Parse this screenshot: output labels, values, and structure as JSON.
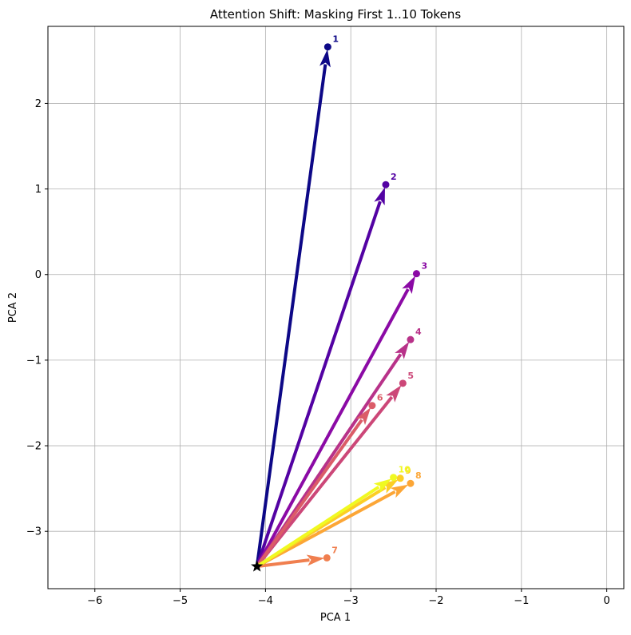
{
  "chart_data": {
    "type": "scatter",
    "title": "Attention Shift: Masking First 1..10 Tokens",
    "xlabel": "PCA 1",
    "ylabel": "PCA 2",
    "xlim": [
      -6.55,
      0.2
    ],
    "ylim": [
      -3.67,
      2.9
    ],
    "xticks": [
      -6,
      -5,
      -4,
      -3,
      -2,
      -1,
      0
    ],
    "yticks": [
      -3,
      -2,
      -1,
      0,
      1,
      2
    ],
    "xtick_labels": [
      "−6",
      "−5",
      "−4",
      "−3",
      "−2",
      "−1",
      "0"
    ],
    "ytick_labels": [
      "−3",
      "−2",
      "−1",
      "0",
      "1",
      "2"
    ],
    "grid": true,
    "origin": {
      "x": -4.1,
      "y": -3.41,
      "marker": "star",
      "color": "#000000"
    },
    "points": [
      {
        "label": "1",
        "x": -3.27,
        "y": 2.66,
        "color": "#0d0887"
      },
      {
        "label": "2",
        "x": -2.59,
        "y": 1.05,
        "color": "#5302a3"
      },
      {
        "label": "3",
        "x": -2.23,
        "y": 0.01,
        "color": "#8b0aa5"
      },
      {
        "label": "4",
        "x": -2.3,
        "y": -0.76,
        "color": "#b83289"
      },
      {
        "label": "5",
        "x": -2.39,
        "y": -1.27,
        "color": "#cc4778"
      },
      {
        "label": "6",
        "x": -2.75,
        "y": -1.53,
        "color": "#db5c68"
      },
      {
        "label": "7",
        "x": -3.28,
        "y": -3.31,
        "color": "#f07f4f"
      },
      {
        "label": "8",
        "x": -2.3,
        "y": -2.44,
        "color": "#fca636"
      },
      {
        "label": "9",
        "x": -2.42,
        "y": -2.38,
        "color": "#fcce25"
      },
      {
        "label": "10",
        "x": -2.5,
        "y": -2.37,
        "color": "#f0f921"
      }
    ]
  }
}
